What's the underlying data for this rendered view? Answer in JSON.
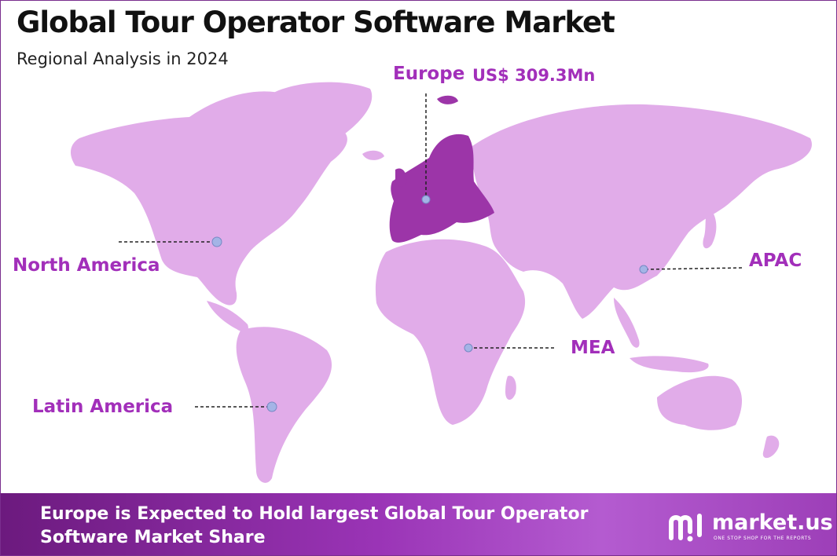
{
  "header": {
    "title": "Global Tour Operator Software Market",
    "subtitle": "Regional Analysis in 2024"
  },
  "map": {
    "highlight_region": "Europe",
    "colors": {
      "land": "#e1ace9",
      "highlight": "#9c35a8",
      "label": "#a22fba",
      "marker": "#a4b4e6",
      "border": "#7a2e8e"
    },
    "regions": [
      {
        "id": "europe",
        "label": "Europe",
        "value": "US$ 309.3Mn"
      },
      {
        "id": "north_america",
        "label": "North America"
      },
      {
        "id": "apac",
        "label": "APAC"
      },
      {
        "id": "mea",
        "label": "MEA"
      },
      {
        "id": "latin_america",
        "label": "Latin America"
      }
    ]
  },
  "footer": {
    "headline": "Europe is Expected to Hold largest Global Tour Operator Software Market Share",
    "brand": "market.us",
    "tagline": "ONE STOP SHOP FOR THE REPORTS"
  }
}
